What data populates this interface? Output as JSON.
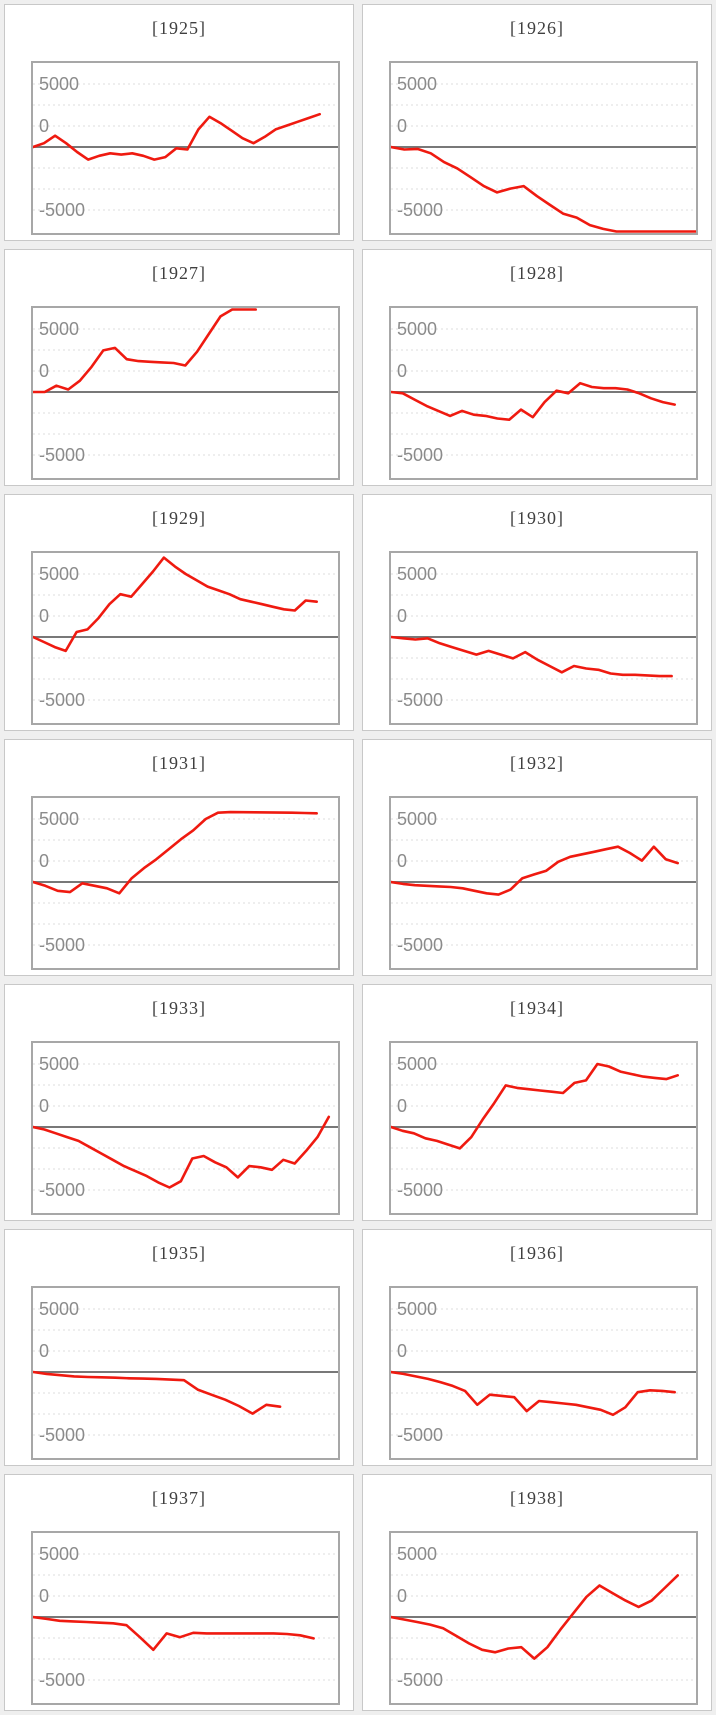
{
  "page": {
    "background_color": "#efefef",
    "description": "Grid of 14 small-multiple line charts (facets), one per year 1925-1938, red cumulative line around a zero axis"
  },
  "axis": {
    "tick_labels": [
      "5000",
      "0",
      "-5000"
    ],
    "tick_values": [
      5000,
      0,
      -5000
    ],
    "x_tick_labels": [],
    "grid": "dotted horizontal lines",
    "zero_line": "solid gray"
  },
  "style": {
    "line_color": "#ef1a10",
    "grid_color": "#dcdcdc",
    "zero_line_color": "#787878",
    "plot_border_color": "#a7a7a7",
    "panel_border_color": "#c8c8c8",
    "tick_label_color": "#8b8b8b",
    "title_color": "#3f3f3f"
  },
  "chart_data": [
    {
      "type": "line",
      "title": "[1925]",
      "ylim": [
        -6800,
        6700
      ],
      "yticks": [
        5000,
        0,
        -5000
      ],
      "legend": "none",
      "end_frac": 0.94,
      "values": [
        0,
        300,
        900,
        300,
        -400,
        -1000,
        -700,
        -500,
        -600,
        -500,
        -700,
        -1000,
        -800,
        -100,
        -200,
        1400,
        2400,
        1900,
        1300,
        700,
        300,
        800,
        1400,
        1700,
        2000,
        2300,
        2600
      ]
    },
    {
      "type": "line",
      "title": "[1926]",
      "ylim": [
        -6800,
        6700
      ],
      "yticks": [
        5000,
        0,
        -5000
      ],
      "legend": "none",
      "end_frac": 1.0,
      "values": [
        0,
        -200,
        -150,
        -500,
        -1200,
        -1700,
        -2400,
        -3100,
        -3600,
        -3300,
        -3100,
        -3900,
        -4600,
        -5300,
        -5600,
        -6200,
        -6500,
        -6900,
        -7100,
        -7100,
        -7100,
        -7100,
        -7100,
        -7100
      ]
    },
    {
      "type": "line",
      "title": "[1927]",
      "ylim": [
        -6800,
        6700
      ],
      "yticks": [
        5000,
        0,
        -5000
      ],
      "legend": "none",
      "end_frac": 0.73,
      "values": [
        0,
        0,
        500,
        200,
        900,
        2000,
        3300,
        3500,
        2600,
        2450,
        2400,
        2350,
        2300,
        2100,
        3200,
        4600,
        6000,
        7000,
        7100,
        7100
      ]
    },
    {
      "type": "line",
      "title": "[1928]",
      "ylim": [
        -6800,
        6700
      ],
      "yticks": [
        5000,
        0,
        -5000
      ],
      "legend": "none",
      "end_frac": 0.93,
      "values": [
        0,
        -100,
        -600,
        -1100,
        -1500,
        -1900,
        -1500,
        -1800,
        -1900,
        -2100,
        -2200,
        -1400,
        -2000,
        -800,
        100,
        -100,
        700,
        400,
        300,
        300,
        200,
        -100,
        -500,
        -800,
        -1000
      ]
    },
    {
      "type": "line",
      "title": "[1929]",
      "ylim": [
        -6800,
        6700
      ],
      "yticks": [
        5000,
        0,
        -5000
      ],
      "legend": "none",
      "end_frac": 0.93,
      "values": [
        0,
        -400,
        -800,
        -1100,
        400,
        600,
        1500,
        2600,
        3400,
        3200,
        4200,
        5200,
        6300,
        5600,
        5000,
        4500,
        4000,
        3700,
        3400,
        3000,
        2800,
        2600,
        2400,
        2200,
        2100,
        2900,
        2800
      ]
    },
    {
      "type": "line",
      "title": "[1930]",
      "ylim": [
        -6800,
        6700
      ],
      "yticks": [
        5000,
        0,
        -5000
      ],
      "legend": "none",
      "end_frac": 0.92,
      "values": [
        0,
        -100,
        -200,
        -100,
        -500,
        -800,
        -1100,
        -1400,
        -1100,
        -1400,
        -1700,
        -1200,
        -1800,
        -2300,
        -2800,
        -2300,
        -2500,
        -2600,
        -2900,
        -3000,
        -3000,
        -3050,
        -3100,
        -3100
      ]
    },
    {
      "type": "line",
      "title": "[1931]",
      "ylim": [
        -6800,
        6700
      ],
      "yticks": [
        5000,
        0,
        -5000
      ],
      "legend": "none",
      "end_frac": 0.93,
      "values": [
        0,
        -300,
        -700,
        -800,
        -100,
        -300,
        -500,
        -900,
        300,
        1100,
        1800,
        2600,
        3400,
        4100,
        5000,
        5500,
        5550,
        5540,
        5530,
        5520,
        5510,
        5500,
        5480,
        5450
      ]
    },
    {
      "type": "line",
      "title": "[1932]",
      "ylim": [
        -6800,
        6700
      ],
      "yticks": [
        5000,
        0,
        -5000
      ],
      "legend": "none",
      "end_frac": 0.94,
      "values": [
        0,
        -150,
        -250,
        -300,
        -350,
        -400,
        -500,
        -700,
        -900,
        -1000,
        -600,
        300,
        600,
        900,
        1600,
        2000,
        2200,
        2400,
        2600,
        2800,
        2300,
        1700,
        2800,
        1800,
        1500
      ]
    },
    {
      "type": "line",
      "title": "[1933]",
      "ylim": [
        -6800,
        6700
      ],
      "yticks": [
        5000,
        0,
        -5000
      ],
      "legend": "none",
      "end_frac": 0.97,
      "values": [
        0,
        -200,
        -500,
        -800,
        -1100,
        -1600,
        -2100,
        -2600,
        -3100,
        -3500,
        -3900,
        -4400,
        -4800,
        -4300,
        -2500,
        -2300,
        -2800,
        -3200,
        -4000,
        -3100,
        -3200,
        -3400,
        -2600,
        -2900,
        -1900,
        -800,
        800
      ]
    },
    {
      "type": "line",
      "title": "[1934]",
      "ylim": [
        -6800,
        6700
      ],
      "yticks": [
        5000,
        0,
        -5000
      ],
      "legend": "none",
      "end_frac": 0.94,
      "values": [
        0,
        -300,
        -500,
        -900,
        -1100,
        -1400,
        -1700,
        -800,
        600,
        1900,
        3300,
        3100,
        3000,
        2900,
        2800,
        2700,
        3500,
        3700,
        5000,
        4800,
        4400,
        4200,
        4000,
        3900,
        3800,
        4100
      ]
    },
    {
      "type": "line",
      "title": "[1935]",
      "ylim": [
        -6800,
        6700
      ],
      "yticks": [
        5000,
        0,
        -5000
      ],
      "legend": "none",
      "end_frac": 0.81,
      "values": [
        0,
        -150,
        -250,
        -350,
        -400,
        -420,
        -450,
        -500,
        -520,
        -550,
        -600,
        -650,
        -1400,
        -1800,
        -2200,
        -2700,
        -3300,
        -2600,
        -2750
      ]
    },
    {
      "type": "line",
      "title": "[1936]",
      "ylim": [
        -6800,
        6700
      ],
      "yticks": [
        5000,
        0,
        -5000
      ],
      "legend": "none",
      "end_frac": 0.93,
      "values": [
        0,
        -150,
        -350,
        -550,
        -800,
        -1100,
        -1500,
        -2600,
        -1800,
        -1900,
        -2000,
        -3100,
        -2300,
        -2400,
        -2500,
        -2600,
        -2800,
        -3000,
        -3400,
        -2800,
        -1600,
        -1450,
        -1500,
        -1600
      ]
    },
    {
      "type": "line",
      "title": "[1937]",
      "ylim": [
        -6800,
        6700
      ],
      "yticks": [
        5000,
        0,
        -5000
      ],
      "legend": "none",
      "end_frac": 0.92,
      "values": [
        0,
        -150,
        -300,
        -350,
        -400,
        -450,
        -500,
        -650,
        -1600,
        -2600,
        -1300,
        -1600,
        -1250,
        -1300,
        -1300,
        -1300,
        -1300,
        -1300,
        -1300,
        -1350,
        -1450,
        -1700
      ]
    },
    {
      "type": "line",
      "title": "[1938]",
      "ylim": [
        -6800,
        6700
      ],
      "yticks": [
        5000,
        0,
        -5000
      ],
      "legend": "none",
      "end_frac": 0.94,
      "values": [
        0,
        -200,
        -400,
        -600,
        -900,
        -1500,
        -2100,
        -2600,
        -2800,
        -2500,
        -2400,
        -3300,
        -2400,
        -1000,
        300,
        1600,
        2500,
        1900,
        1300,
        800,
        1300,
        2300,
        3300
      ]
    }
  ]
}
